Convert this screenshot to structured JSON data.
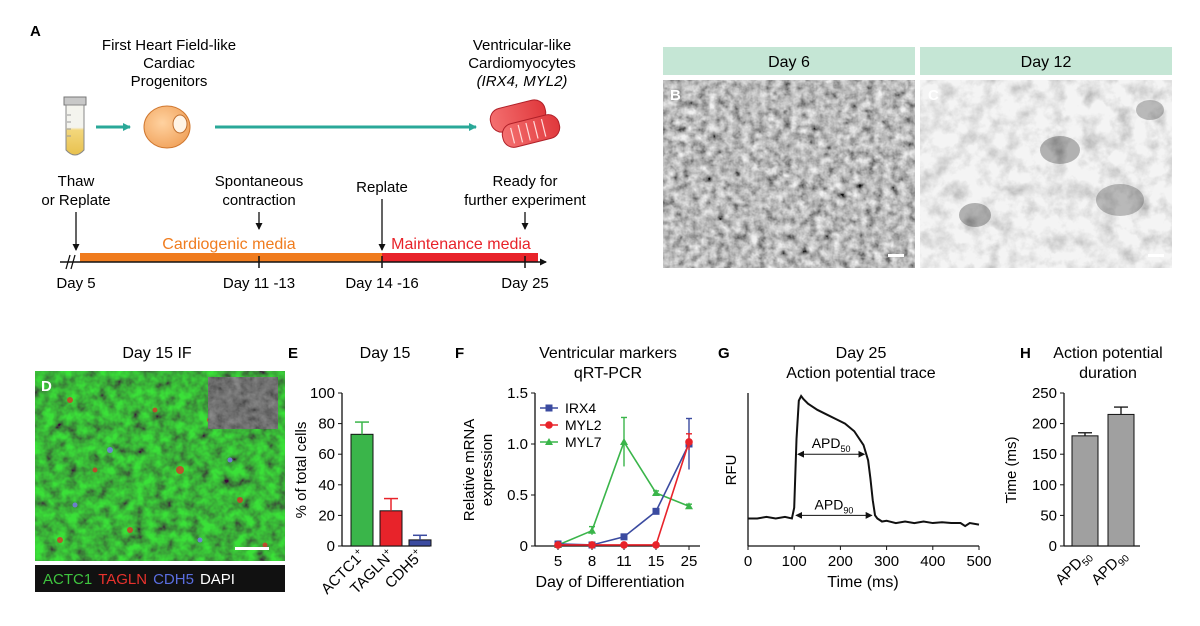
{
  "panel_a": {
    "letter": "A",
    "progenitor_label_lines": [
      "First Heart Field-like",
      "Cardiac",
      "Progenitors"
    ],
    "cardiomyocyte_label_lines": [
      "Ventricular-like",
      "Cardiomyocytes"
    ],
    "cardiomyocyte_markers": "(IRX4, MYL2)",
    "steps": [
      {
        "lines": [
          "Thaw",
          "or Replate"
        ]
      },
      {
        "lines": [
          "Spontaneous",
          "contraction"
        ]
      },
      {
        "lines": [
          "Replate"
        ]
      },
      {
        "lines": [
          "Ready for",
          "further experiment"
        ]
      }
    ],
    "media": [
      {
        "label": "Cardiogenic media",
        "color": "#f07c1e"
      },
      {
        "label": "Maintenance media",
        "color": "#e8232a"
      }
    ],
    "days": [
      "Day 5",
      "Day 11 -13",
      "Day 14 -16",
      "Day 25"
    ]
  },
  "micrographs": [
    {
      "letter": "B",
      "header": "Day 6"
    },
    {
      "letter": "C",
      "header": "Day 12"
    }
  ],
  "panel_d": {
    "letter": "D",
    "title": "Day 15 IF",
    "legend": [
      {
        "label": "ACTC1",
        "color": "#3fc43f"
      },
      {
        "label": "TAGLN",
        "color": "#e8322d"
      },
      {
        "label": "CDH5",
        "color": "#5a6ee0"
      },
      {
        "label": "DAPI",
        "color": "#ffffff"
      }
    ]
  },
  "chart_data": [
    {
      "panel": "E",
      "type": "bar",
      "title": "Day 15",
      "ylabel": "% of total cells",
      "ylim": [
        0,
        100
      ],
      "yticks": [
        "0",
        "20",
        "40",
        "60",
        "80",
        "100"
      ],
      "categories": [
        "ACTC1",
        "TAGLN",
        "CDH5"
      ],
      "category_superscript": "+",
      "values": [
        73,
        23,
        4
      ],
      "errors": [
        8,
        8,
        3
      ],
      "colors": [
        "#3ab54a",
        "#e8232a",
        "#3b4ba0"
      ]
    },
    {
      "panel": "F",
      "type": "line",
      "title_lines": [
        "Ventricular markers",
        "qRT-PCR"
      ],
      "ylabel_lines": [
        "Relative mRNA",
        "expression"
      ],
      "xlabel": "Day of Differentiation",
      "x": [
        5,
        8,
        11,
        15,
        25
      ],
      "xticks": [
        "5",
        "8",
        "11",
        "15",
        "25"
      ],
      "ylim": [
        0,
        1.5
      ],
      "yticks": [
        "0",
        "0.5",
        "1.0",
        "1.5"
      ],
      "series": [
        {
          "name": "IRX4",
          "color": "#3b4ba0",
          "marker": "square",
          "values": [
            0.02,
            0.01,
            0.09,
            0.34,
            1.0
          ],
          "errors": [
            0.01,
            0.01,
            0.02,
            0.02,
            0.25
          ]
        },
        {
          "name": "MYL2",
          "color": "#e8232a",
          "marker": "circle",
          "values": [
            0.01,
            0.01,
            0.01,
            0.01,
            1.02
          ],
          "errors": [
            0,
            0,
            0,
            0,
            0.08
          ]
        },
        {
          "name": "MYL7",
          "color": "#3ab54a",
          "marker": "triangle",
          "values": [
            0.01,
            0.15,
            1.02,
            0.52,
            0.39
          ],
          "errors": [
            0,
            0.04,
            0.24,
            0.02,
            0.02
          ]
        }
      ]
    },
    {
      "panel": "G",
      "type": "line",
      "title_lines": [
        "Day 25",
        "Action potential trace"
      ],
      "xlabel": "Time (ms)",
      "ylabel": "RFU",
      "xlim": [
        0,
        500
      ],
      "xticks": [
        "0",
        "100",
        "200",
        "300",
        "400",
        "500"
      ],
      "ylim": [
        0,
        1
      ],
      "x": [
        0,
        20,
        40,
        60,
        80,
        95,
        100,
        105,
        110,
        115,
        120,
        130,
        150,
        170,
        190,
        210,
        230,
        250,
        260,
        265,
        270,
        275,
        280,
        290,
        300,
        320,
        340,
        360,
        380,
        400,
        420,
        440,
        460,
        470,
        480,
        500
      ],
      "y": [
        0.18,
        0.18,
        0.19,
        0.18,
        0.19,
        0.18,
        0.25,
        0.7,
        0.95,
        0.98,
        0.96,
        0.93,
        0.89,
        0.86,
        0.83,
        0.8,
        0.75,
        0.66,
        0.56,
        0.44,
        0.3,
        0.2,
        0.18,
        0.16,
        0.165,
        0.15,
        0.16,
        0.15,
        0.16,
        0.15,
        0.155,
        0.15,
        0.15,
        0.13,
        0.15,
        0.14
      ],
      "annotations": [
        {
          "label": "APD",
          "sub": "50",
          "y": 0.6
        },
        {
          "label": "APD",
          "sub": "90",
          "y": 0.2
        }
      ]
    },
    {
      "panel": "H",
      "type": "bar",
      "title_lines": [
        "Action potential",
        "duration"
      ],
      "ylabel": "Time (ms)",
      "ylim": [
        0,
        250
      ],
      "yticks": [
        "0",
        "50",
        "100",
        "150",
        "200",
        "250"
      ],
      "categories": [
        {
          "label": "APD",
          "sub": "50"
        },
        {
          "label": "APD",
          "sub": "90"
        }
      ],
      "values": [
        180,
        215
      ],
      "errors": [
        5,
        12
      ],
      "colors": [
        "#a0a0a0",
        "#a0a0a0"
      ]
    }
  ]
}
